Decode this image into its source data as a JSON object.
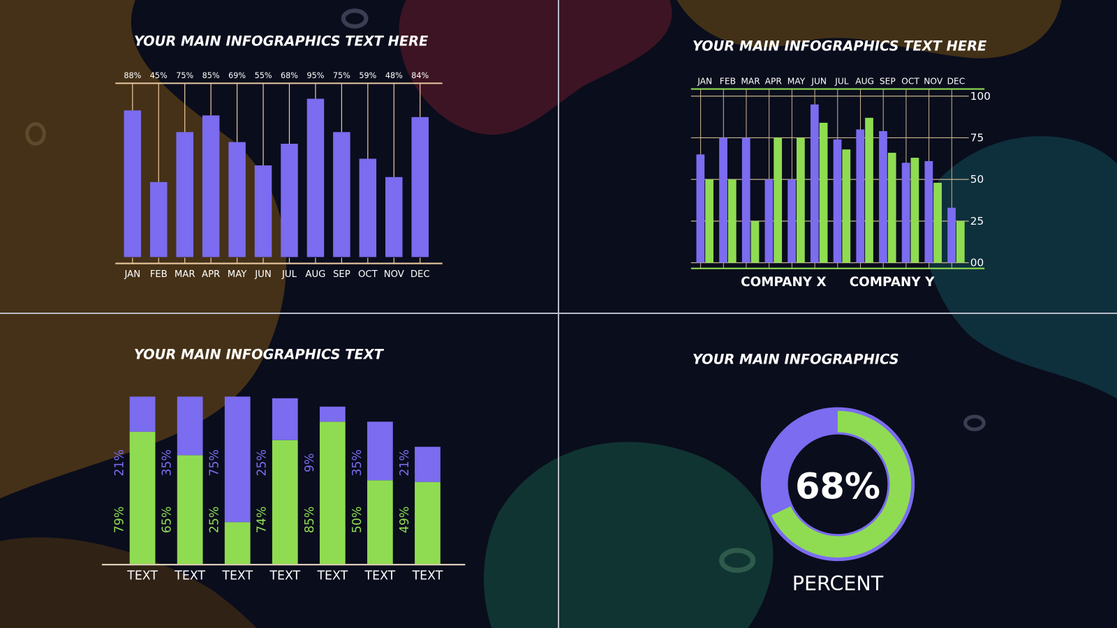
{
  "chart_data": [
    {
      "type": "bar",
      "title": "YOUR MAIN INFOGRAPHICS TEXT HERE",
      "categories": [
        "JAN",
        "FEB",
        "MAR",
        "APR",
        "MAY",
        "JUN",
        "JUL",
        "AUG",
        "SEP",
        "OCT",
        "NOV",
        "DEC"
      ],
      "values": [
        88,
        45,
        75,
        85,
        69,
        55,
        68,
        95,
        75,
        59,
        48,
        84
      ],
      "value_labels": [
        "88%",
        "45%",
        "75%",
        "85%",
        "69%",
        "55%",
        "68%",
        "95%",
        "75%",
        "59%",
        "48%",
        "84%"
      ],
      "color": "#7b6cf0"
    },
    {
      "type": "grouped_bar",
      "title": "YOUR MAIN INFOGRAPHICS TEXT HERE",
      "categories": [
        "JAN",
        "FEB",
        "MAR",
        "APR",
        "MAY",
        "JUN",
        "JUL",
        "AUG",
        "SEP",
        "OCT",
        "NOV",
        "DEC"
      ],
      "series": [
        {
          "name": "COMPANY X",
          "color": "#7b6cf0",
          "values": [
            65,
            75,
            75,
            50,
            50,
            95,
            74,
            80,
            79,
            60,
            61,
            33
          ]
        },
        {
          "name": "COMPANY Y",
          "color": "#8fdc52",
          "values": [
            50,
            50,
            25,
            75,
            75,
            84,
            68,
            87,
            66,
            63,
            48,
            25
          ]
        }
      ],
      "ylim": [
        0,
        100
      ],
      "yticks": [
        100,
        75,
        50,
        25,
        {
          "value": 0,
          "label": "00"
        }
      ],
      "grid": true
    },
    {
      "type": "stacked_bar",
      "title": "YOUR MAIN INFOGRAPHICS TEXT",
      "categories": [
        "TEXT",
        "TEXT",
        "TEXT",
        "TEXT",
        "TEXT",
        "TEXT",
        "TEXT"
      ],
      "series": [
        {
          "color": "#8fdc52",
          "values": [
            79,
            65,
            25,
            74,
            85,
            50,
            49
          ],
          "value_labels": [
            "79%",
            "65%",
            "25%",
            "74%",
            "85%",
            "50%",
            "49%"
          ]
        },
        {
          "color": "#7b6cf0",
          "values": [
            21,
            35,
            75,
            25,
            9,
            35,
            21
          ],
          "value_labels": [
            "21%",
            "35%",
            "75%",
            "25%",
            "9%",
            "35%",
            "21%"
          ]
        }
      ]
    },
    {
      "type": "donut",
      "title": "YOUR MAIN INFOGRAPHICS",
      "value": 68,
      "value_label": "68%",
      "label": "PERCENT",
      "color": "#8fdc52",
      "track_color": "#7b6cf0"
    }
  ]
}
